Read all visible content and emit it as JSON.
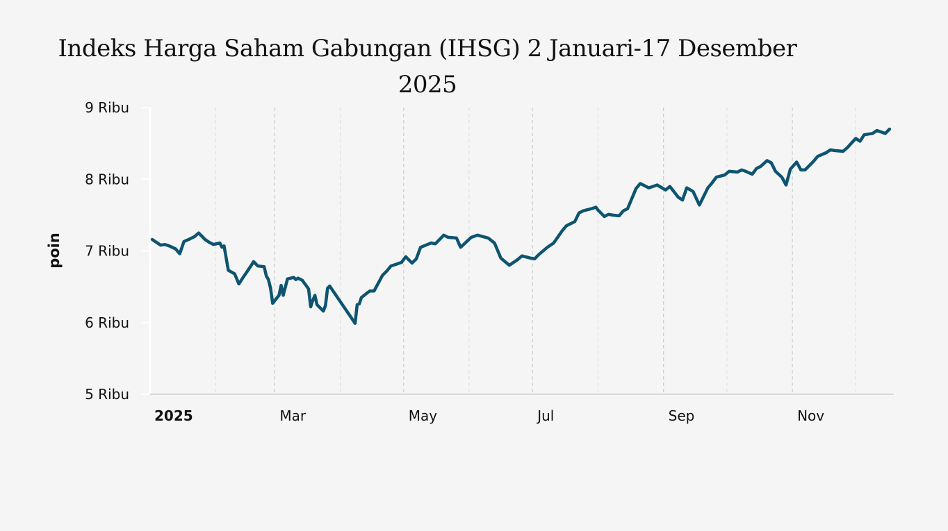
{
  "chart_data": {
    "type": "line",
    "title_line1": "Indeks Harga Saham Gabungan (IHSG) 2 Januari-17 Desember",
    "title_line2": "2025",
    "ylabel": "poin",
    "ylim": [
      5000,
      9000
    ],
    "xlim": [
      "2025-01-01",
      "2025-12-19"
    ],
    "grid": "vertical-dashed",
    "line_color": "#0e5470",
    "y_ticks": [
      {
        "value": 9000,
        "label": "9 Ribu"
      },
      {
        "value": 8000,
        "label": "8 Ribu"
      },
      {
        "value": 7000,
        "label": "7 Ribu"
      },
      {
        "value": 6000,
        "label": "6 Ribu"
      },
      {
        "value": 5000,
        "label": "5 Ribu"
      }
    ],
    "x_ticks": [
      {
        "date": "2025-01-01",
        "label": "2025",
        "bold": true
      },
      {
        "date": "2025-03-01",
        "label": "Mar"
      },
      {
        "date": "2025-05-01",
        "label": "May"
      },
      {
        "date": "2025-07-01",
        "label": "Jul"
      },
      {
        "date": "2025-09-01",
        "label": "Sep"
      },
      {
        "date": "2025-11-01",
        "label": "Nov"
      }
    ],
    "minor_gridlines": [
      "2025-02-01",
      "2025-04-01",
      "2025-06-01",
      "2025-08-01",
      "2025-10-01",
      "2025-12-01"
    ],
    "series": [
      {
        "x": [
          "2025-01-02",
          "2025-01-06",
          "2025-01-08",
          "2025-01-10",
          "2025-01-13",
          "2025-01-15",
          "2025-01-17",
          "2025-01-20",
          "2025-01-22",
          "2025-01-24",
          "2025-01-27",
          "2025-01-29",
          "2025-01-31",
          "2025-02-03",
          "2025-02-04",
          "2025-02-05",
          "2025-02-07",
          "2025-02-10",
          "2025-02-12",
          "2025-02-14",
          "2025-02-17",
          "2025-02-19",
          "2025-02-21",
          "2025-02-24",
          "2025-02-25",
          "2025-02-26",
          "2025-02-27",
          "2025-02-28",
          "2025-03-03",
          "2025-03-04",
          "2025-03-05",
          "2025-03-07",
          "2025-03-10",
          "2025-03-11",
          "2025-03-12",
          "2025-03-14",
          "2025-03-17",
          "2025-03-18",
          "2025-03-19",
          "2025-03-20",
          "2025-03-21",
          "2025-03-24",
          "2025-03-25",
          "2025-03-26",
          "2025-03-27",
          "2025-04-08",
          "2025-04-09",
          "2025-04-10",
          "2025-04-11",
          "2025-04-14",
          "2025-04-15",
          "2025-04-17",
          "2025-04-21",
          "2025-04-23",
          "2025-04-25",
          "2025-04-28",
          "2025-04-30",
          "2025-05-02",
          "2025-05-05",
          "2025-05-07",
          "2025-05-09",
          "2025-05-14",
          "2025-05-16",
          "2025-05-20",
          "2025-05-22",
          "2025-05-26",
          "2025-05-28",
          "2025-06-02",
          "2025-06-05",
          "2025-06-10",
          "2025-06-13",
          "2025-06-16",
          "2025-06-18",
          "2025-06-20",
          "2025-06-23",
          "2025-06-24",
          "2025-06-26",
          "2025-06-30",
          "2025-07-02",
          "2025-07-04",
          "2025-07-08",
          "2025-07-11",
          "2025-07-15",
          "2025-07-17",
          "2025-07-21",
          "2025-07-23",
          "2025-07-25",
          "2025-07-29",
          "2025-07-31",
          "2025-08-01",
          "2025-08-04",
          "2025-08-06",
          "2025-08-08",
          "2025-08-11",
          "2025-08-13",
          "2025-08-15",
          "2025-08-19",
          "2025-08-21",
          "2025-08-25",
          "2025-08-27",
          "2025-08-29",
          "2025-09-02",
          "2025-09-04",
          "2025-09-08",
          "2025-09-10",
          "2025-09-12",
          "2025-09-15",
          "2025-09-18",
          "2025-09-22",
          "2025-09-24",
          "2025-09-26",
          "2025-09-30",
          "2025-10-02",
          "2025-10-06",
          "2025-10-08",
          "2025-10-10",
          "2025-10-13",
          "2025-10-15",
          "2025-10-17",
          "2025-10-20",
          "2025-10-22",
          "2025-10-24",
          "2025-10-27",
          "2025-10-29",
          "2025-10-31",
          "2025-11-03",
          "2025-11-05",
          "2025-11-07",
          "2025-11-11",
          "2025-11-13",
          "2025-11-17",
          "2025-11-19",
          "2025-11-21",
          "2025-11-25",
          "2025-11-27",
          "2025-12-01",
          "2025-12-03",
          "2025-12-05",
          "2025-12-09",
          "2025-12-11",
          "2025-12-15",
          "2025-12-17"
        ],
        "y": [
          7160,
          7080,
          7090,
          7070,
          7030,
          6960,
          7130,
          7170,
          7200,
          7250,
          7160,
          7120,
          7090,
          7110,
          7050,
          7070,
          6730,
          6680,
          6540,
          6630,
          6760,
          6850,
          6790,
          6780,
          6650,
          6600,
          6480,
          6270,
          6380,
          6520,
          6380,
          6610,
          6630,
          6600,
          6620,
          6590,
          6470,
          6220,
          6310,
          6380,
          6250,
          6160,
          6240,
          6480,
          6510,
          5990,
          6250,
          6260,
          6350,
          6420,
          6440,
          6440,
          6660,
          6720,
          6790,
          6820,
          6840,
          6920,
          6830,
          6890,
          7050,
          7110,
          7100,
          7220,
          7190,
          7180,
          7050,
          7190,
          7220,
          7180,
          7110,
          6900,
          6850,
          6800,
          6860,
          6880,
          6930,
          6900,
          6890,
          6950,
          7050,
          7110,
          7280,
          7350,
          7410,
          7530,
          7560,
          7590,
          7610,
          7570,
          7480,
          7510,
          7500,
          7490,
          7560,
          7590,
          7870,
          7940,
          7880,
          7900,
          7920,
          7850,
          7900,
          7750,
          7710,
          7880,
          7830,
          7640,
          7880,
          7950,
          8030,
          8060,
          8110,
          8100,
          8130,
          8110,
          8070,
          8150,
          8180,
          8260,
          8230,
          8110,
          8030,
          7920,
          8140,
          8240,
          8130,
          8130,
          8250,
          8320,
          8370,
          8410,
          8400,
          8390,
          8440,
          8570,
          8530,
          8620,
          8640,
          8680,
          8640,
          8700
        ]
      }
    ]
  }
}
